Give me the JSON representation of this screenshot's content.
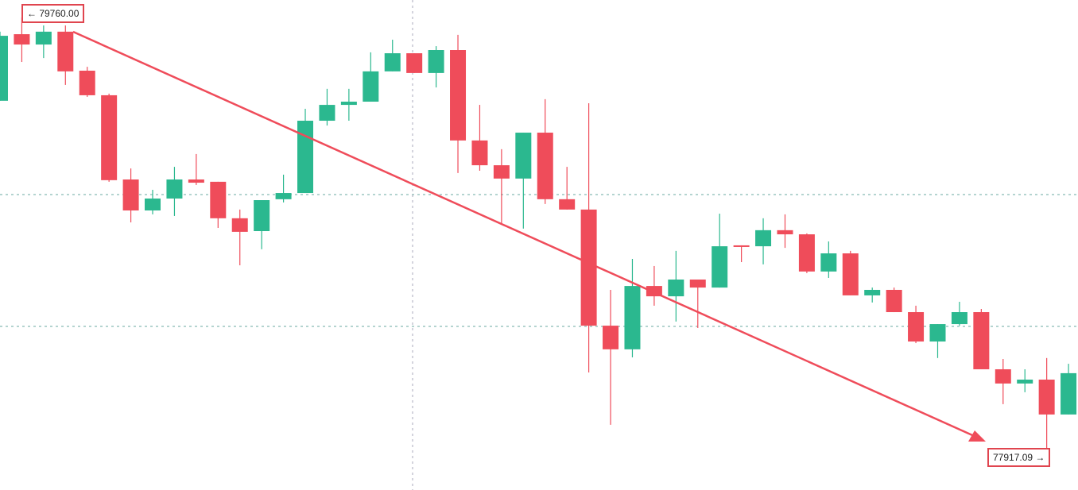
{
  "chart_data": {
    "type": "candlestick",
    "up_color": "#2bb88f",
    "down_color": "#ef4c5a",
    "ylim": [
      77735,
      79870
    ],
    "open": [
      79431,
      79721,
      79676,
      79732,
      79562,
      79455,
      79088,
      78953,
      79005,
      79088,
      79078,
      78919,
      78863,
      79002,
      79029,
      79344,
      79413,
      79427,
      79559,
      79638,
      79552,
      79652,
      79258,
      79150,
      79092,
      79292,
      79002,
      78957,
      78451,
      78348,
      78624,
      78579,
      78652,
      78617,
      78801,
      78797,
      78867,
      78849,
      78687,
      78766,
      78583,
      78607,
      78510,
      78382,
      78458,
      78510,
      78261,
      78199,
      78216,
      78064
    ],
    "high": [
      79732,
      79794,
      79759,
      79759,
      79579,
      79462,
      79136,
      79043,
      79143,
      79199,
      79078,
      78957,
      78998,
      79109,
      79396,
      79483,
      79483,
      79642,
      79697,
      79638,
      79669,
      79718,
      79413,
      79220,
      79292,
      79438,
      79143,
      79420,
      78607,
      78742,
      78711,
      78777,
      78652,
      78939,
      78801,
      78919,
      78936,
      78853,
      78818,
      78777,
      78617,
      78617,
      78538,
      78458,
      78555,
      78524,
      78306,
      78261,
      78310,
      78285
    ],
    "low": [
      79431,
      79600,
      79617,
      79500,
      79448,
      79078,
      78901,
      78936,
      78929,
      79064,
      78877,
      78714,
      78784,
      78988,
      79029,
      79323,
      79344,
      79427,
      79559,
      79552,
      79489,
      79116,
      79126,
      78894,
      78874,
      78981,
      78957,
      78247,
      78019,
      78313,
      78538,
      78469,
      78441,
      78617,
      78728,
      78718,
      78790,
      78680,
      78659,
      78583,
      78552,
      78510,
      78375,
      78310,
      78451,
      78261,
      78109,
      78161,
      77915,
      78064
    ],
    "close": [
      79714,
      79676,
      79732,
      79559,
      79455,
      79085,
      78953,
      79005,
      79088,
      79074,
      78919,
      78860,
      78998,
      79029,
      79344,
      79413,
      79427,
      79559,
      79638,
      79552,
      79652,
      79258,
      79150,
      79092,
      79292,
      79002,
      78957,
      78451,
      78348,
      78624,
      78579,
      78652,
      78617,
      78797,
      78794,
      78867,
      78849,
      78687,
      78766,
      78583,
      78607,
      78510,
      78382,
      78458,
      78510,
      78261,
      78199,
      78216,
      78064,
      78244
    ],
    "annotations": [
      {
        "text": "← 79760.00"
      },
      {
        "text": "77917.09 →"
      }
    ]
  }
}
